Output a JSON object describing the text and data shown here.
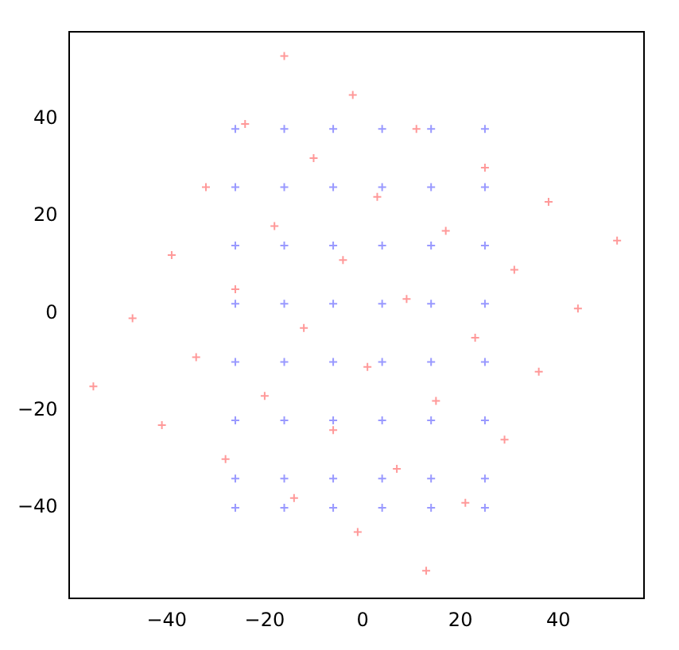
{
  "chart_data": {
    "type": "scatter",
    "marker": "cross",
    "grid": false,
    "legend": false,
    "xlim": [
      -60,
      57.5
    ],
    "ylim": [
      -58.7,
      58
    ],
    "xticks": [
      {
        "value": -40,
        "label": "−40"
      },
      {
        "value": -20,
        "label": "−20"
      },
      0,
      20,
      40
    ],
    "yticks": [
      {
        "value": -40,
        "label": "−40"
      },
      {
        "value": -20,
        "label": "−20"
      },
      0,
      20,
      40
    ],
    "series": [
      {
        "color": "#ff9999",
        "x": [
          -55,
          -47,
          -39,
          -32,
          -24,
          -16,
          -41,
          -34,
          -26,
          -18,
          -10,
          -2,
          -28,
          -20,
          -12,
          -4,
          3,
          11,
          -14,
          -6,
          1,
          9,
          17,
          25,
          -1,
          7,
          15,
          23,
          31,
          38,
          13,
          21,
          29,
          36,
          44,
          52
        ],
        "values": [
          -15,
          -1,
          12,
          26,
          39,
          53,
          -23,
          -9,
          5,
          18,
          32,
          45,
          -30,
          -17,
          -3,
          11,
          24,
          38,
          -38,
          -24,
          -11,
          3,
          17,
          30,
          -45,
          -32,
          -18,
          -5,
          9,
          23,
          -53,
          -39,
          -26,
          -12,
          1,
          15
        ]
      },
      {
        "color": "#9999ff",
        "x": [
          -26,
          -16,
          -6,
          4,
          14,
          25,
          -26,
          -16,
          -6,
          4,
          14,
          25,
          -26,
          -16,
          -6,
          4,
          14,
          25,
          -26,
          -16,
          -6,
          4,
          14,
          25,
          -26,
          -16,
          -6,
          4,
          14,
          25,
          -26,
          -16,
          -6,
          4,
          14,
          25,
          -26,
          -16,
          -6,
          4,
          14,
          25,
          -26,
          -16,
          -6,
          4,
          14,
          25
        ],
        "values": [
          38,
          38,
          38,
          38,
          38,
          38,
          26,
          26,
          26,
          26,
          26,
          26,
          14,
          14,
          14,
          14,
          14,
          14,
          2,
          2,
          2,
          2,
          2,
          2,
          -10,
          -10,
          -10,
          -10,
          -10,
          -10,
          -22,
          -22,
          -22,
          -22,
          -22,
          -22,
          -34,
          -34,
          -34,
          -34,
          -34,
          -34,
          -40,
          -40,
          -40,
          -40,
          -40,
          -40
        ]
      }
    ]
  }
}
